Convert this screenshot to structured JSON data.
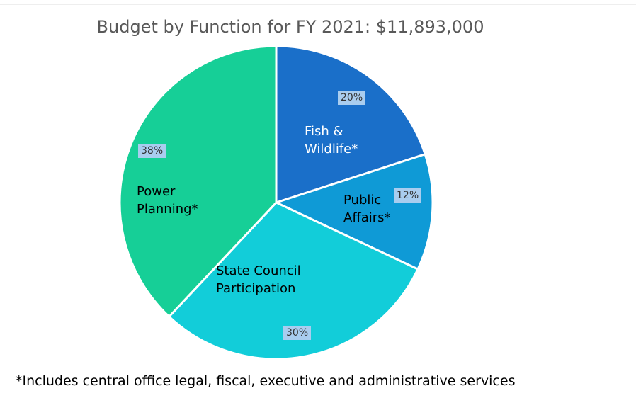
{
  "chart_data": {
    "type": "pie",
    "title": "Budget by Function for FY 2021: $11,893,000",
    "categories": [
      "Fish & Wildlife*",
      "Public Affairs*",
      "State Council Participation",
      "Power Planning*"
    ],
    "values": [
      20,
      12,
      30,
      38
    ],
    "value_labels": [
      "20%",
      "12%",
      "30%",
      "38%"
    ],
    "colors": [
      "#1a6fc9",
      "#0f9ad6",
      "#12cdd9",
      "#16cf97"
    ],
    "footnote": "*Includes central office legal, fiscal, executive and administrative services"
  }
}
